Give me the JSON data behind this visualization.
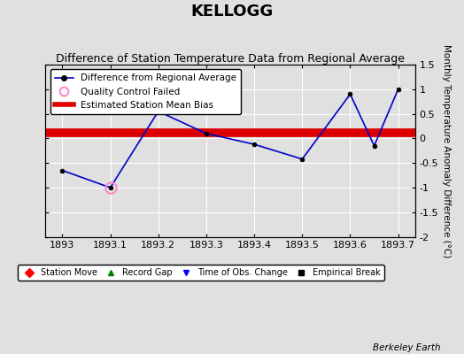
{
  "title": "KELLOGG",
  "subtitle": "Difference of Station Temperature Data from Regional Average",
  "ylabel_right": "Monthly Temperature Anomaly Difference (°C)",
  "line_x": [
    1893.0,
    1893.1,
    1893.2,
    1893.3,
    1893.4,
    1893.5,
    1893.6,
    1893.65,
    1893.7
  ],
  "line_y": [
    -0.65,
    -1.0,
    0.55,
    0.1,
    -0.12,
    -0.42,
    0.9,
    -0.15,
    1.0
  ],
  "qc_failed_x": [
    1893.1
  ],
  "qc_failed_y": [
    -1.0
  ],
  "bias_y": 0.12,
  "xlim": [
    1892.965,
    1893.735
  ],
  "ylim": [
    -2.0,
    1.5
  ],
  "yticks": [
    -2.0,
    -1.5,
    -1.0,
    -0.5,
    0.0,
    0.5,
    1.0,
    1.5
  ],
  "ytick_labels": [
    "-2",
    "-1.5",
    "-1",
    "-0.5",
    "0",
    "0.5",
    "1",
    "1.5"
  ],
  "xticks": [
    1893.0,
    1893.1,
    1893.2,
    1893.3,
    1893.4,
    1893.5,
    1893.6,
    1893.7
  ],
  "xtick_labels": [
    "1893",
    "1893.1",
    "1893.2",
    "1893.3",
    "1893.4",
    "1893.5",
    "1893.6",
    "1893.7"
  ],
  "line_color": "#0000cc",
  "marker_color": "#000000",
  "qc_marker_color": "#ff88cc",
  "bias_color": "#dd0000",
  "bias_linewidth": 7,
  "background_color": "#e0e0e0",
  "grid_color": "#ffffff",
  "title_fontsize": 13,
  "subtitle_fontsize": 9,
  "tick_fontsize": 8,
  "berkeley_earth_label": "Berkeley Earth"
}
